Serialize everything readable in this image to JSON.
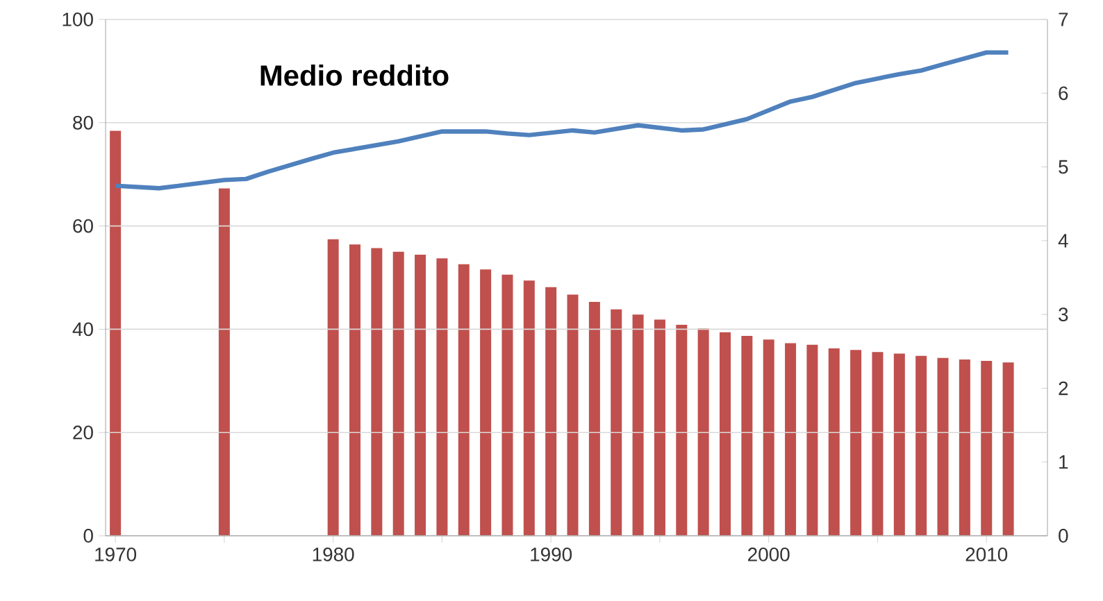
{
  "chart_data": {
    "type": "bar",
    "title": "Medio reddito",
    "xlim": [
      1969.55,
      2012.8
    ],
    "xticks": [
      1970,
      {
        "value": 1975,
        "label": null
      },
      1980,
      {
        "value": 1985,
        "label": null
      },
      1990,
      {
        "value": 1995,
        "label": null
      },
      2000,
      {
        "value": 2005,
        "label": null
      },
      2010
    ],
    "ylim": [
      0,
      100
    ],
    "yticks": [
      0,
      20,
      40,
      60,
      80,
      100
    ],
    "y2lim": [
      0,
      7
    ],
    "y2ticks": [
      0,
      1,
      2,
      3,
      4,
      5,
      6,
      7
    ],
    "grid": "y",
    "series": [
      {
        "axis": "y2",
        "color": "#c0504d",
        "x": [
          1970,
          1975,
          1980,
          1981,
          1982,
          1983,
          1984,
          1985,
          1986,
          1987,
          1988,
          1989,
          1990,
          1991,
          1992,
          1993,
          1994,
          1995,
          1996,
          1997,
          1998,
          1999,
          2000,
          2001,
          2002,
          2003,
          2004,
          2005,
          2006,
          2007,
          2008,
          2009,
          2010,
          2011
        ],
        "values": [
          5.49,
          4.71,
          4.02,
          3.95,
          3.9,
          3.85,
          3.81,
          3.76,
          3.68,
          3.61,
          3.54,
          3.46,
          3.37,
          3.27,
          3.17,
          3.07,
          3.0,
          2.93,
          2.86,
          2.81,
          2.76,
          2.71,
          2.66,
          2.61,
          2.59,
          2.54,
          2.52,
          2.49,
          2.47,
          2.44,
          2.41,
          2.39,
          2.37,
          2.35
        ]
      },
      {
        "type": "line",
        "axis": "y",
        "color": "#4f81bd",
        "line_style": "solid",
        "x": [
          1970,
          1972,
          1975,
          1976,
          1977,
          1979,
          1980,
          1983,
          1985,
          1987,
          1988,
          1989,
          1991,
          1992,
          1994,
          1996,
          1997,
          1999,
          2001,
          2002,
          2004,
          2006,
          2007,
          2008,
          2010,
          2011
        ],
        "values": [
          67.8,
          67.3,
          68.9,
          69.1,
          70.5,
          73.0,
          74.2,
          76.4,
          78.3,
          78.3,
          77.9,
          77.6,
          78.5,
          78.1,
          79.5,
          78.5,
          78.7,
          80.7,
          84.1,
          85.0,
          87.7,
          89.4,
          90.1,
          91.3,
          93.6,
          93.6
        ]
      }
    ]
  }
}
